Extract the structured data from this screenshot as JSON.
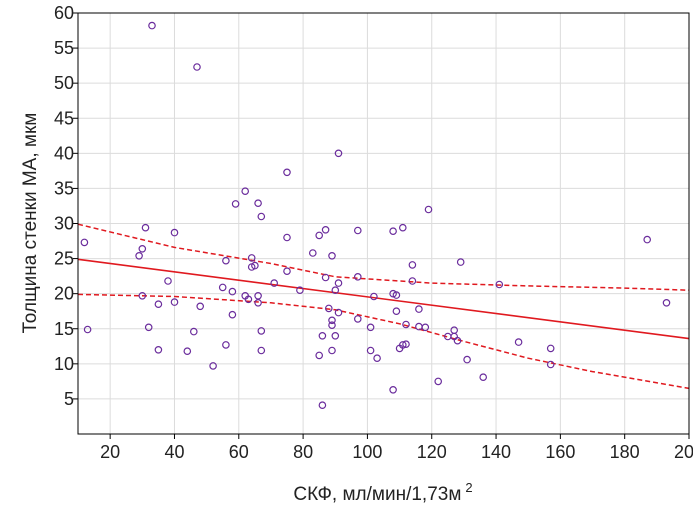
{
  "chart_data": {
    "type": "scatter",
    "title": "",
    "xlabel": "СКФ, мл/мин/1,73м",
    "xlabel_sup": "2",
    "ylabel": "Толщина стенки МА, мкм",
    "xlim": [
      10,
      200
    ],
    "ylim": [
      0,
      60
    ],
    "x_ticks": [
      20,
      40,
      60,
      80,
      100,
      120,
      140,
      160,
      180,
      200
    ],
    "y_ticks": [
      5,
      10,
      15,
      20,
      25,
      30,
      35,
      40,
      45,
      50,
      55,
      60
    ],
    "grid": true,
    "colors": {
      "points": "#6a2c9c",
      "fit": "#e0191f",
      "ci": "#e0191f"
    },
    "points": [
      [
        12,
        27.3
      ],
      [
        13,
        14.9
      ],
      [
        29,
        25.4
      ],
      [
        30,
        26.4
      ],
      [
        30,
        19.7
      ],
      [
        31,
        29.4
      ],
      [
        32,
        15.2
      ],
      [
        33,
        58.2
      ],
      [
        35,
        12
      ],
      [
        35,
        18.5
      ],
      [
        38,
        21.8
      ],
      [
        40,
        18.8
      ],
      [
        40,
        28.7
      ],
      [
        44,
        11.8
      ],
      [
        46,
        14.6
      ],
      [
        47,
        52.3
      ],
      [
        48,
        18.2
      ],
      [
        52,
        9.7
      ],
      [
        55,
        20.9
      ],
      [
        56,
        24.7
      ],
      [
        56,
        12.7
      ],
      [
        58,
        17
      ],
      [
        58,
        20.3
      ],
      [
        59,
        32.8
      ],
      [
        62,
        34.6
      ],
      [
        62,
        19.7
      ],
      [
        63,
        19.2
      ],
      [
        64,
        25.1
      ],
      [
        64,
        23.8
      ],
      [
        65,
        24
      ],
      [
        66,
        19.7
      ],
      [
        66,
        18.7
      ],
      [
        66,
        32.9
      ],
      [
        67,
        31
      ],
      [
        67,
        14.7
      ],
      [
        67,
        11.9
      ],
      [
        71,
        21.5
      ],
      [
        75,
        23.2
      ],
      [
        75,
        37.3
      ],
      [
        75,
        28
      ],
      [
        79,
        20.5
      ],
      [
        83,
        25.8
      ],
      [
        85,
        11.2
      ],
      [
        85,
        28.3
      ],
      [
        86,
        4.1
      ],
      [
        86,
        14
      ],
      [
        87,
        29.1
      ],
      [
        87,
        22.3
      ],
      [
        88,
        17.9
      ],
      [
        89,
        25.4
      ],
      [
        89,
        16.2
      ],
      [
        89,
        11.9
      ],
      [
        89,
        15.5
      ],
      [
        90,
        14
      ],
      [
        90,
        20.5
      ],
      [
        91,
        40
      ],
      [
        91,
        21.5
      ],
      [
        91,
        17.3
      ],
      [
        97,
        22.4
      ],
      [
        97,
        29
      ],
      [
        97,
        16.4
      ],
      [
        101,
        15.2
      ],
      [
        101,
        11.9
      ],
      [
        102,
        19.6
      ],
      [
        103,
        10.8
      ],
      [
        108,
        28.9
      ],
      [
        108,
        20
      ],
      [
        108,
        6.3
      ],
      [
        109,
        19.8
      ],
      [
        109,
        17.5
      ],
      [
        110,
        12.2
      ],
      [
        111,
        12.7
      ],
      [
        111,
        29.4
      ],
      [
        112,
        15.6
      ],
      [
        112,
        12.8
      ],
      [
        114,
        21.8
      ],
      [
        114,
        24.1
      ],
      [
        116,
        17.8
      ],
      [
        116,
        15.3
      ],
      [
        118,
        15.2
      ],
      [
        119,
        32
      ],
      [
        122,
        7.5
      ],
      [
        125,
        13.9
      ],
      [
        127,
        13.9
      ],
      [
        127,
        14.8
      ],
      [
        128,
        13.3
      ],
      [
        129,
        24.5
      ],
      [
        131,
        10.6
      ],
      [
        136,
        8.1
      ],
      [
        141,
        21.3
      ],
      [
        147,
        13.1
      ],
      [
        157,
        12.2
      ],
      [
        157,
        9.9
      ],
      [
        187,
        27.7
      ],
      [
        193,
        18.7
      ]
    ],
    "fit_line": {
      "x": [
        10,
        200
      ],
      "y": [
        24.9,
        13.6
      ]
    },
    "ci_upper": {
      "x": [
        10,
        40,
        70,
        90,
        120,
        150,
        180,
        200
      ],
      "y": [
        29.9,
        26.6,
        24.3,
        22.4,
        21.5,
        21.1,
        20.8,
        20.5
      ]
    },
    "ci_lower": {
      "x": [
        10,
        40,
        70,
        90,
        110,
        130,
        150,
        170,
        200
      ],
      "y": [
        19.9,
        19.6,
        18.7,
        17.7,
        15.7,
        13.2,
        10.8,
        8.9,
        6.5
      ]
    }
  }
}
